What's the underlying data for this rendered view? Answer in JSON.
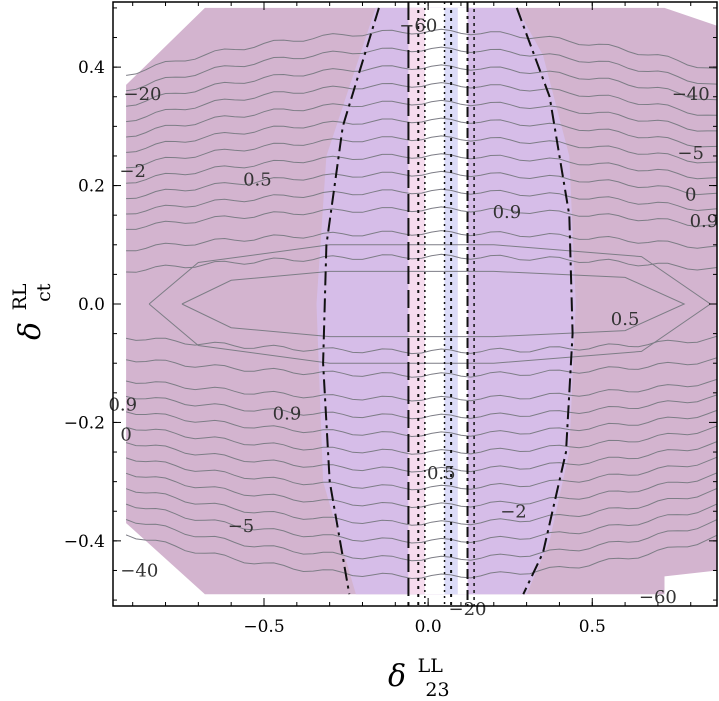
{
  "chart_data": {
    "type": "contour",
    "xlabel": {
      "symbol": "δ",
      "sup": "LL",
      "sub": "23"
    },
    "ylabel": {
      "symbol": "δ",
      "sup": "RL",
      "sub": "ct"
    },
    "xlim": [
      -0.96,
      0.88
    ],
    "ylim": [
      -0.51,
      0.51
    ],
    "x_ticks": [
      -0.5,
      0.0,
      0.5
    ],
    "x_tick_labels": [
      "−0.5",
      "0.0",
      "0.5"
    ],
    "y_ticks": [
      -0.4,
      -0.2,
      0.0,
      0.2,
      0.4
    ],
    "y_tick_labels": [
      "−0.4",
      "−0.2",
      "0.0",
      "0.2",
      "0.4"
    ],
    "grid": false,
    "colors": {
      "outer_region": "#d3b4cf",
      "inner_region": "#d6bde8",
      "pink_strip": "#f6dcee",
      "blue_strip": "#dcdcf8",
      "contour_line": "#7d7d86",
      "boundary_line": "#111111"
    },
    "contour_levels": [
      -60,
      -40,
      -20,
      -5,
      -2,
      0,
      0.5,
      0.9
    ],
    "contour_labels": [
      {
        "text": "−60",
        "x": -0.03,
        "y": 0.47
      },
      {
        "text": "−20",
        "x": -0.87,
        "y": 0.355
      },
      {
        "text": "−2",
        "x": -0.9,
        "y": 0.225
      },
      {
        "text": "0.5",
        "x": -0.52,
        "y": 0.21
      },
      {
        "text": "−40",
        "x": 0.8,
        "y": 0.355
      },
      {
        "text": "−5",
        "x": 0.8,
        "y": 0.255
      },
      {
        "text": "0",
        "x": 0.8,
        "y": 0.185
      },
      {
        "text": "0.9",
        "x": 0.84,
        "y": 0.14
      },
      {
        "text": "0.9",
        "x": 0.24,
        "y": 0.155
      },
      {
        "text": "0.5",
        "x": 0.6,
        "y": -0.025
      },
      {
        "text": "0.9",
        "x": -0.93,
        "y": -0.17
      },
      {
        "text": "0",
        "x": -0.92,
        "y": -0.22
      },
      {
        "text": "0.9",
        "x": -0.43,
        "y": -0.185
      },
      {
        "text": "0.5",
        "x": 0.04,
        "y": -0.285
      },
      {
        "text": "−2",
        "x": 0.26,
        "y": -0.35
      },
      {
        "text": "−5",
        "x": -0.57,
        "y": -0.375
      },
      {
        "text": "−40",
        "x": -0.88,
        "y": -0.45
      },
      {
        "text": "−20",
        "x": 0.12,
        "y": -0.515
      },
      {
        "text": "−60",
        "x": 0.7,
        "y": -0.495
      }
    ]
  }
}
